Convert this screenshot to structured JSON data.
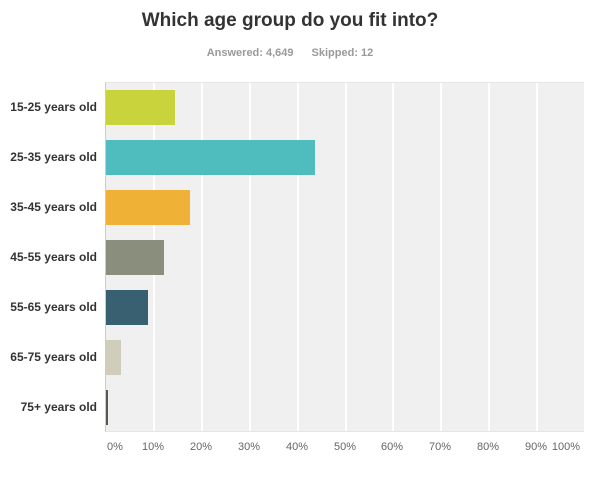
{
  "header": {
    "title": "Which age group do you fit into?",
    "answered_label": "Answered: 4,649",
    "skipped_label": "Skipped: 12"
  },
  "chart_data": {
    "type": "bar",
    "orientation": "horizontal",
    "title": "Which age group do you fit into?",
    "categories": [
      "15-25 years old",
      "25-35 years old",
      "35-45 years old",
      "45-55 years old",
      "55-65 years old",
      "65-75 years old",
      "75+ years old"
    ],
    "values": [
      14.4,
      43.7,
      17.5,
      12.1,
      8.8,
      3.1,
      0.4
    ],
    "unit": "%",
    "bar_colors": [
      "#c9d43c",
      "#4fbcbe",
      "#efb236",
      "#8a8e7c",
      "#386070",
      "#d0cebb",
      "#565b4f"
    ],
    "x_tick_labels": [
      "0%",
      "10%",
      "20%",
      "30%",
      "40%",
      "50%",
      "60%",
      "70%",
      "80%",
      "90%",
      "100%"
    ],
    "xlim": [
      0,
      100
    ],
    "xlabel": "",
    "ylabel": "",
    "grid": "vertical white gridlines every 10%",
    "plot_background": "#f0f0f1",
    "legend": "none"
  }
}
